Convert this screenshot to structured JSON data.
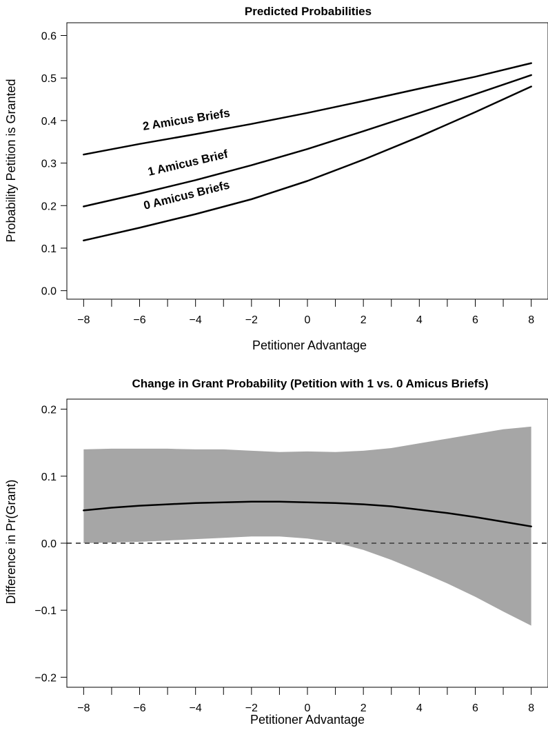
{
  "chart_data": [
    {
      "type": "line",
      "title": "Predicted Probabilities",
      "xlabel": "Petitioner Advantage",
      "ylabel": "Probability Petition is Granted",
      "xlim": [
        -8.6,
        8.6
      ],
      "ylim": [
        -0.02,
        0.63
      ],
      "x_ticks": [
        -8,
        -6,
        -4,
        -2,
        0,
        2,
        4,
        6,
        8
      ],
      "x_minor_ticks": [
        -7,
        -5,
        -3,
        -1,
        1,
        3,
        5,
        7
      ],
      "y_ticks": [
        0.0,
        0.1,
        0.2,
        0.3,
        0.4,
        0.5,
        0.6
      ],
      "x_tick_labels": [
        "−8",
        "−6",
        "−4",
        "−2",
        "0",
        "2",
        "4",
        "6",
        "8"
      ],
      "y_tick_labels": [
        "0.0",
        "0.1",
        "0.2",
        "0.3",
        "0.4",
        "0.5",
        "0.6"
      ],
      "grid": false,
      "legend": "none (curves labeled directly)",
      "x": [
        -8,
        -6,
        -4,
        -2,
        0,
        2,
        4,
        6,
        8
      ],
      "series": [
        {
          "name": "2 Amicus Briefs",
          "values": [
            0.32,
            0.345,
            0.368,
            0.392,
            0.418,
            0.446,
            0.475,
            0.503,
            0.535
          ]
        },
        {
          "name": "1 Amicus Brief",
          "values": [
            0.198,
            0.228,
            0.26,
            0.295,
            0.333,
            0.375,
            0.418,
            0.462,
            0.507
          ]
        },
        {
          "name": "0 Amicus Briefs",
          "values": [
            0.118,
            0.148,
            0.18,
            0.215,
            0.258,
            0.308,
            0.362,
            0.42,
            0.48
          ]
        }
      ]
    },
    {
      "type": "line",
      "title": "Change in Grant Probability (Petition with 1 vs. 0 Amicus Briefs)",
      "xlabel": "Petitioner Advantage",
      "ylabel": "Difference in Pr(Grant)",
      "xlim": [
        -8.6,
        8.6
      ],
      "ylim": [
        -0.215,
        0.215
      ],
      "x_ticks": [
        -8,
        -6,
        -4,
        -2,
        0,
        2,
        4,
        6,
        8
      ],
      "x_minor_ticks": [
        -7,
        -5,
        -3,
        -1,
        1,
        3,
        5,
        7
      ],
      "y_ticks": [
        -0.2,
        -0.1,
        0.0,
        0.1,
        0.2
      ],
      "x_tick_labels": [
        "−8",
        "−6",
        "−4",
        "−2",
        "0",
        "2",
        "4",
        "6",
        "8"
      ],
      "y_tick_labels": [
        "−0.2",
        "−0.1",
        "0.0",
        "0.1",
        "0.2"
      ],
      "grid": false,
      "reference_line": {
        "y": 0.0,
        "style": "dashed"
      },
      "x": [
        -8,
        -7,
        -6,
        -5,
        -4,
        -3,
        -2,
        -1,
        0,
        1,
        2,
        3,
        4,
        5,
        6,
        7,
        8
      ],
      "series": [
        {
          "name": "",
          "values": [
            0.049,
            0.053,
            0.056,
            0.058,
            0.06,
            0.061,
            0.062,
            0.062,
            0.061,
            0.06,
            0.058,
            0.055,
            0.05,
            0.045,
            0.039,
            0.032,
            0.025
          ]
        }
      ],
      "band": {
        "upper": [
          0.14,
          0.141,
          0.141,
          0.141,
          0.14,
          0.14,
          0.138,
          0.136,
          0.137,
          0.136,
          0.138,
          0.142,
          0.149,
          0.156,
          0.163,
          0.17,
          0.174
        ],
        "lower": [
          0.0,
          0.001,
          0.002,
          0.004,
          0.006,
          0.008,
          0.01,
          0.01,
          0.007,
          0.001,
          -0.01,
          -0.025,
          -0.042,
          -0.06,
          -0.08,
          -0.102,
          -0.123
        ],
        "color": "#a6a6a6"
      },
      "line_color": "#000000",
      "reference_color": "#555555"
    }
  ]
}
